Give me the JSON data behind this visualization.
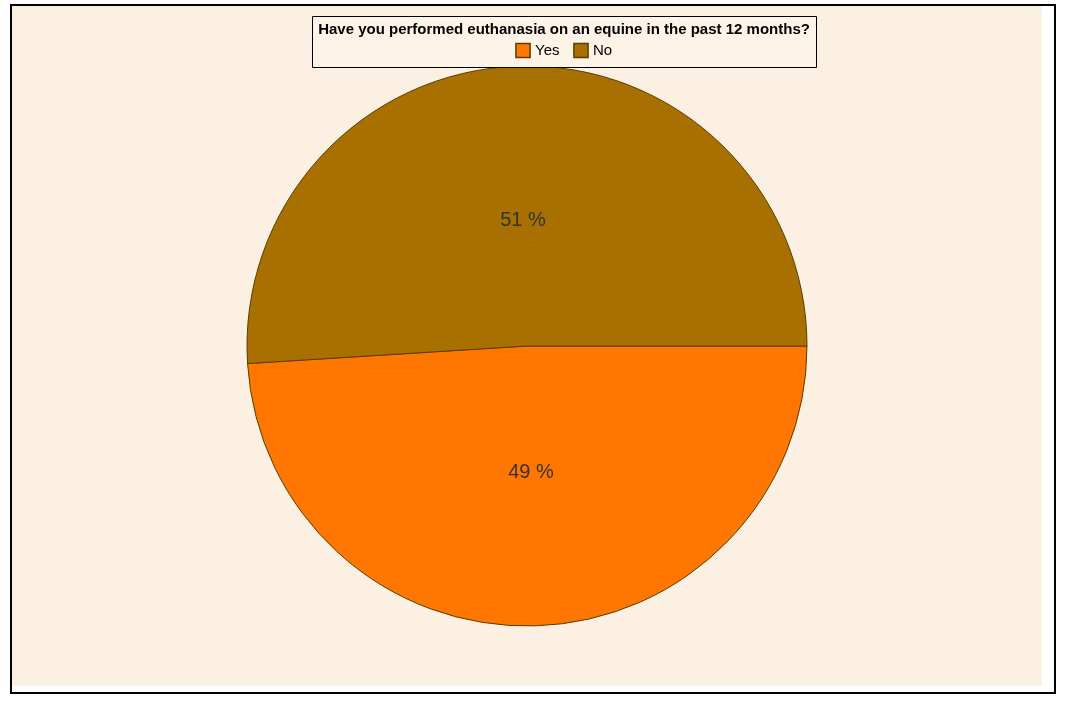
{
  "chart_data": {
    "type": "pie",
    "legend_title": "Have you performed euthanasia on an equine in the past 12 months?",
    "categories": [
      "Yes",
      "No"
    ],
    "values": [
      49,
      51
    ],
    "colors": [
      "#ff7700",
      "#a87000"
    ],
    "value_labels": [
      "49 %",
      "51 %"
    ],
    "legend": "top"
  }
}
